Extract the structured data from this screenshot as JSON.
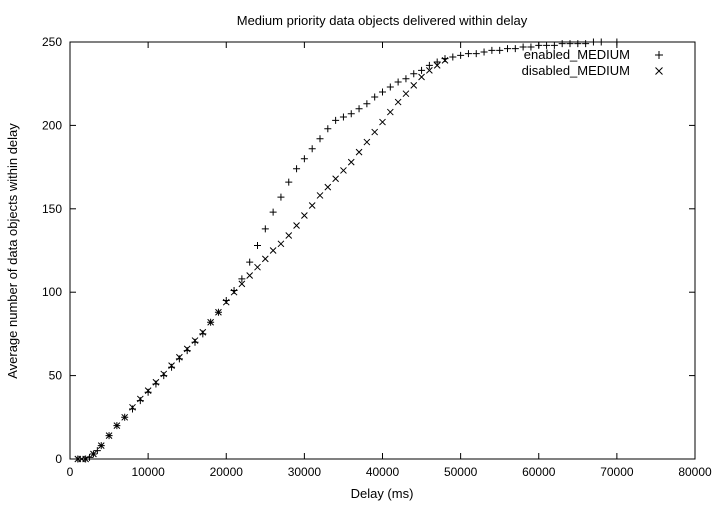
{
  "chart_data": {
    "type": "scatter",
    "title": "Medium priority data objects delivered within delay",
    "xlabel": "Delay (ms)",
    "ylabel": "Average number of data objects within delay",
    "xlim": [
      0,
      80000
    ],
    "ylim": [
      0,
      250
    ],
    "x_ticks": [
      0,
      10000,
      20000,
      30000,
      40000,
      50000,
      60000,
      70000,
      80000
    ],
    "y_ticks": [
      0,
      50,
      100,
      150,
      200,
      250
    ],
    "x_tick_labels": [
      "0",
      "10000",
      "20000",
      "30000",
      "40000",
      "50000",
      "60000",
      "70000",
      "80000"
    ],
    "y_tick_labels": [
      "0",
      "50",
      "100",
      "150",
      "200",
      "250"
    ],
    "grid": false,
    "legend_position": "top-right",
    "series": [
      {
        "name": "enabled_MEDIUM",
        "marker": "plus",
        "points": [
          [
            1000,
            0
          ],
          [
            2000,
            0
          ],
          [
            2500,
            1
          ],
          [
            3000,
            3
          ],
          [
            3500,
            5
          ],
          [
            4000,
            8
          ],
          [
            5000,
            14
          ],
          [
            6000,
            20
          ],
          [
            7000,
            25
          ],
          [
            8000,
            30
          ],
          [
            9000,
            35
          ],
          [
            10000,
            40
          ],
          [
            11000,
            45
          ],
          [
            12000,
            50
          ],
          [
            13000,
            55
          ],
          [
            14000,
            60
          ],
          [
            15000,
            65
          ],
          [
            16000,
            70
          ],
          [
            17000,
            75
          ],
          [
            18000,
            82
          ],
          [
            19000,
            88
          ],
          [
            20000,
            95
          ],
          [
            21000,
            101
          ],
          [
            22000,
            108
          ],
          [
            23000,
            118
          ],
          [
            24000,
            128
          ],
          [
            25000,
            138
          ],
          [
            26000,
            148
          ],
          [
            27000,
            157
          ],
          [
            28000,
            166
          ],
          [
            29000,
            174
          ],
          [
            30000,
            180
          ],
          [
            31000,
            186
          ],
          [
            32000,
            192
          ],
          [
            33000,
            198
          ],
          [
            34000,
            203
          ],
          [
            35000,
            205
          ],
          [
            36000,
            207
          ],
          [
            37000,
            210
          ],
          [
            38000,
            213
          ],
          [
            39000,
            217
          ],
          [
            40000,
            220
          ],
          [
            41000,
            223
          ],
          [
            42000,
            226
          ],
          [
            43000,
            228
          ],
          [
            44000,
            231
          ],
          [
            45000,
            233
          ],
          [
            46000,
            236
          ],
          [
            47000,
            238
          ],
          [
            48000,
            240
          ],
          [
            49000,
            241
          ],
          [
            50000,
            242
          ],
          [
            51000,
            243
          ],
          [
            52000,
            243
          ],
          [
            53000,
            244
          ],
          [
            54000,
            245
          ],
          [
            55000,
            245
          ],
          [
            56000,
            246
          ],
          [
            57000,
            246
          ],
          [
            58000,
            247
          ],
          [
            59000,
            247
          ],
          [
            60000,
            248
          ],
          [
            61000,
            248
          ],
          [
            62000,
            248
          ],
          [
            63000,
            249
          ],
          [
            64000,
            249
          ],
          [
            65000,
            249
          ],
          [
            66000,
            249
          ],
          [
            67000,
            250
          ],
          [
            68000,
            250
          ],
          [
            70000,
            250
          ]
        ]
      },
      {
        "name": "disabled_MEDIUM",
        "marker": "cross",
        "points": [
          [
            1000,
            0
          ],
          [
            1500,
            0
          ],
          [
            2000,
            0
          ],
          [
            3000,
            3
          ],
          [
            4000,
            8
          ],
          [
            5000,
            14
          ],
          [
            6000,
            20
          ],
          [
            7000,
            25
          ],
          [
            8000,
            31
          ],
          [
            9000,
            36
          ],
          [
            10000,
            41
          ],
          [
            11000,
            46
          ],
          [
            12000,
            51
          ],
          [
            13000,
            56
          ],
          [
            14000,
            61
          ],
          [
            15000,
            66
          ],
          [
            16000,
            71
          ],
          [
            17000,
            76
          ],
          [
            18000,
            82
          ],
          [
            19000,
            88
          ],
          [
            20000,
            94
          ],
          [
            21000,
            100
          ],
          [
            22000,
            105
          ],
          [
            23000,
            110
          ],
          [
            24000,
            115
          ],
          [
            25000,
            120
          ],
          [
            26000,
            125
          ],
          [
            27000,
            129
          ],
          [
            28000,
            134
          ],
          [
            29000,
            140
          ],
          [
            30000,
            146
          ],
          [
            31000,
            152
          ],
          [
            32000,
            158
          ],
          [
            33000,
            163
          ],
          [
            34000,
            168
          ],
          [
            35000,
            173
          ],
          [
            36000,
            178
          ],
          [
            37000,
            184
          ],
          [
            38000,
            190
          ],
          [
            39000,
            196
          ],
          [
            40000,
            202
          ],
          [
            41000,
            208
          ],
          [
            42000,
            214
          ],
          [
            43000,
            219
          ],
          [
            44000,
            224
          ],
          [
            45000,
            229
          ],
          [
            46000,
            233
          ],
          [
            47000,
            236
          ],
          [
            48000,
            239
          ]
        ]
      }
    ]
  }
}
